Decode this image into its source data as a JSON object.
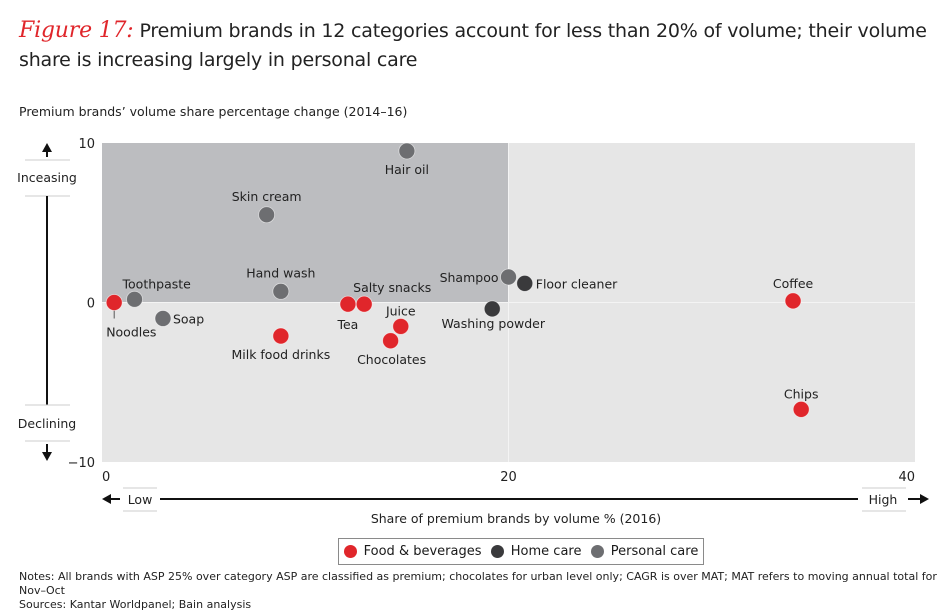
{
  "header": {
    "figure_label": "Figure 17:",
    "title": "Premium brands in 12 categories account for less than 20% of volume; their volume share is increasing largely in personal care",
    "subtitle": "Premium brands’ volume share percentage change (2014–16)"
  },
  "colors": {
    "food_beverages": "#e0262b",
    "home_care": "#3a3a3c",
    "personal_care": "#6d6e71",
    "highlight_region": "#bcbdc0",
    "plot_background": "#e6e6e6",
    "title_accent": "#e0262b"
  },
  "chart_data": {
    "type": "scatter",
    "title": "Premium brands in 12 categories account for less than 20% of volume; their volume share is increasing largely in personal care",
    "xlabel": "Share of premium brands by volume % (2016)",
    "ylabel": "Premium brands’ volume share percentage change (2014–16)",
    "xlim": [
      0,
      40
    ],
    "ylim": [
      -10,
      10
    ],
    "x_ticks": [
      "0",
      "20",
      "40"
    ],
    "y_ticks": [
      "10",
      "0",
      "−10"
    ],
    "x_direction_labels": {
      "low": "Low",
      "high": "High"
    },
    "y_direction_labels": {
      "up": "Inceasing",
      "down": "Declining"
    },
    "highlight_region": {
      "x": [
        0,
        20
      ],
      "y": [
        0,
        10
      ]
    },
    "grid": false,
    "legend_position": "bottom-center",
    "series": [
      {
        "name": "Food & beverages",
        "points": [
          {
            "label": "Noodles",
            "x": 0.6,
            "y": 0.0
          },
          {
            "label": "Milk food drinks",
            "x": 8.8,
            "y": -2.1
          },
          {
            "label": "Tea",
            "x": 12.1,
            "y": -0.1
          },
          {
            "label": "Salty snacks",
            "x": 12.9,
            "y": -0.1
          },
          {
            "label": "Juice",
            "x": 14.7,
            "y": -1.5
          },
          {
            "label": "Chocolates",
            "x": 14.2,
            "y": -2.4
          },
          {
            "label": "Coffee",
            "x": 34.0,
            "y": 0.1
          },
          {
            "label": "Chips",
            "x": 34.4,
            "y": -6.7
          }
        ]
      },
      {
        "name": "Home care",
        "points": [
          {
            "label": "Floor cleaner",
            "x": 20.8,
            "y": 1.2
          },
          {
            "label": "Washing powder",
            "x": 19.2,
            "y": -0.4
          }
        ]
      },
      {
        "name": "Personal care",
        "points": [
          {
            "label": "Toothpaste",
            "x": 1.6,
            "y": 0.2
          },
          {
            "label": "Soap",
            "x": 3.0,
            "y": -1.0
          },
          {
            "label": "Skin cream",
            "x": 8.1,
            "y": 5.5
          },
          {
            "label": "Hand wash",
            "x": 8.8,
            "y": 0.7
          },
          {
            "label": "Hair oil",
            "x": 15.0,
            "y": 9.5
          },
          {
            "label": "Shampoo",
            "x": 20.0,
            "y": 1.6
          }
        ]
      }
    ]
  },
  "legend": {
    "items": [
      {
        "label": "Food & beverages",
        "color": "#e0262b"
      },
      {
        "label": "Home care",
        "color": "#3a3a3c"
      },
      {
        "label": "Personal care",
        "color": "#6d6e71"
      }
    ]
  },
  "footer": {
    "notes": "Notes: All brands with ASP 25% over category ASP are classified as premium; chocolates for urban level only; CAGR is over MAT; MAT refers to moving annual total for Nov–Oct",
    "sources": "Sources: Kantar Worldpanel; Bain analysis"
  }
}
